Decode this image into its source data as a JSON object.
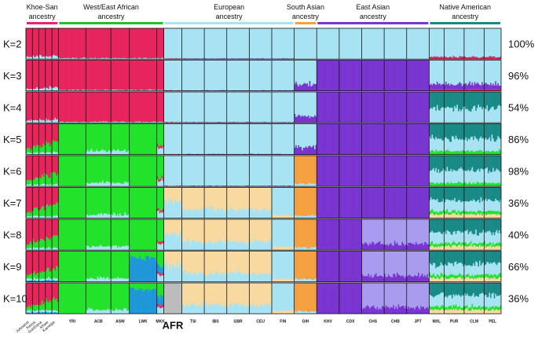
{
  "chart_data": {
    "type": "admixture-bar",
    "title": "",
    "ancestries": [
      {
        "name": "Khoe-San ancestry",
        "color": "#e8246f",
        "start": 0,
        "end": 5
      },
      {
        "name": "West/East African ancestry",
        "color": "#22c02b",
        "start": 5,
        "end": 10
      },
      {
        "name": "European ancestry",
        "color": "#a8e3f3",
        "start": 10,
        "end": 16
      },
      {
        "name": "South Asian ancestry",
        "color": "#f5a041",
        "start": 16,
        "end": 17
      },
      {
        "name": "East Asian ancestry",
        "color": "#7a35d1",
        "start": 17,
        "end": 22
      },
      {
        "name": "Native American ancestry",
        "color": "#1a8a86",
        "start": 22,
        "end": 26
      }
    ],
    "populations": [
      "Juhoansi",
      "Nama",
      "Gui/Gana",
      "Khwe",
      "Karretjie",
      "YRI",
      "ACB",
      "ASW",
      "LWK",
      "MKK",
      "AFR",
      "TSI",
      "IBS",
      "GBR",
      "CEU",
      "FIN",
      "GIH",
      "KHV",
      "CDX",
      "CHS",
      "CHB",
      "JPT",
      "MXL",
      "PUR",
      "CLM",
      "PEL"
    ],
    "population_widths": [
      1.3,
      1.3,
      1.3,
      1.3,
      1.3,
      5.5,
      5,
      3.7,
      5.5,
      1.4,
      3.6,
      4.5,
      4.5,
      4.5,
      4.5,
      4.5,
      4.5,
      4.5,
      4.5,
      4.5,
      4.5,
      4.5,
      3,
      4,
      4,
      3.4
    ],
    "palette": {
      "KS": "#e8245c",
      "WA": "#22e22b",
      "EU": "#a8e3f3",
      "SA": "#f5a041",
      "EA": "#7a35d1",
      "NA": "#1a8a86",
      "LWK": "#1f97d8",
      "AFR": "#bcbcbc",
      "SEU": "#f8d9a0",
      "EA2": "#a99cf0"
    },
    "rows": [
      {
        "label": "K=2",
        "percent": "100%"
      },
      {
        "label": "K=3",
        "percent": "96%"
      },
      {
        "label": "K=4",
        "percent": "54%"
      },
      {
        "label": "K=5",
        "percent": "86%"
      },
      {
        "label": "K=6",
        "percent": "98%"
      },
      {
        "label": "K=7",
        "percent": "36%"
      },
      {
        "label": "K=8",
        "percent": "40%"
      },
      {
        "label": "K=9",
        "percent": "66%"
      },
      {
        "label": "K=10",
        "percent": "36%"
      }
    ]
  }
}
